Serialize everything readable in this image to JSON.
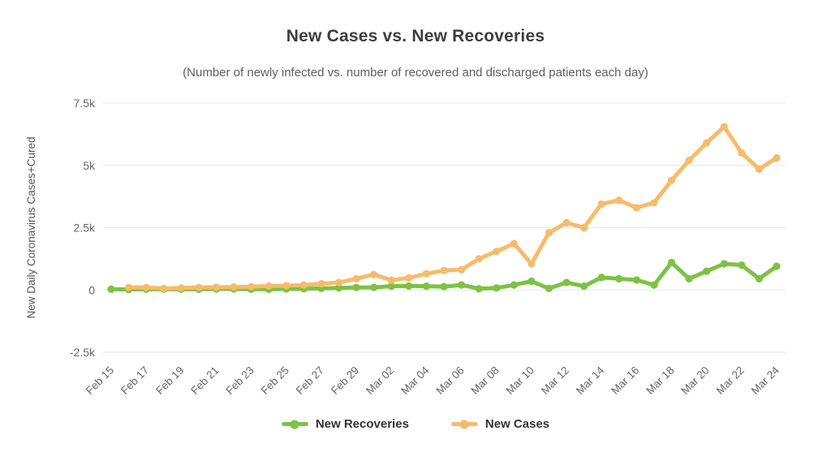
{
  "chart_data": {
    "type": "line",
    "title": "New Cases vs. New Recoveries",
    "subtitle": "(Number of newly infected vs. number of recovered and discharged patients each day)",
    "xlabel": "",
    "ylabel": "New Daily Coronavirus Cases+Cured",
    "ylim": [
      -2500,
      7500
    ],
    "grid": true,
    "legend_position": "bottom",
    "yticks": [
      {
        "value": 7500,
        "label": "7.5k"
      },
      {
        "value": 5000,
        "label": "5k"
      },
      {
        "value": 2500,
        "label": "2.5k"
      },
      {
        "value": 0,
        "label": "0"
      },
      {
        "value": -2500,
        "label": "-2.5k"
      }
    ],
    "x_label_step": 2,
    "x": [
      "Feb 15",
      "Feb 16",
      "Feb 17",
      "Feb 18",
      "Feb 19",
      "Feb 20",
      "Feb 21",
      "Feb 22",
      "Feb 23",
      "Feb 24",
      "Feb 25",
      "Feb 26",
      "Feb 27",
      "Feb 28",
      "Feb 29",
      "Mar 01",
      "Mar 02",
      "Mar 03",
      "Mar 04",
      "Mar 05",
      "Mar 06",
      "Mar 07",
      "Mar 08",
      "Mar 09",
      "Mar 10",
      "Mar 11",
      "Mar 12",
      "Mar 13",
      "Mar 14",
      "Mar 15",
      "Mar 16",
      "Mar 17",
      "Mar 18",
      "Mar 19",
      "Mar 20",
      "Mar 21",
      "Mar 22",
      "Mar 23",
      "Mar 24"
    ],
    "series": [
      {
        "name": "New Recoveries",
        "color": "#7dc242",
        "values": [
          30,
          20,
          30,
          30,
          30,
          30,
          40,
          40,
          30,
          30,
          40,
          50,
          60,
          80,
          100,
          100,
          150,
          160,
          150,
          130,
          200,
          50,
          80,
          200,
          350,
          60,
          300,
          150,
          500,
          450,
          400,
          200,
          1100,
          450,
          750,
          1050,
          1000,
          450,
          950
        ]
      },
      {
        "name": "New Cases",
        "color": "#f7bb6b",
        "values": [
          null,
          100,
          100,
          60,
          80,
          100,
          110,
          120,
          130,
          160,
          170,
          200,
          250,
          300,
          450,
          620,
          390,
          490,
          650,
          780,
          810,
          1250,
          1550,
          1860,
          1050,
          2300,
          2700,
          2500,
          3450,
          3600,
          3300,
          3500,
          4400,
          5200,
          5900,
          6550,
          5500,
          4850,
          5300
        ]
      }
    ]
  }
}
